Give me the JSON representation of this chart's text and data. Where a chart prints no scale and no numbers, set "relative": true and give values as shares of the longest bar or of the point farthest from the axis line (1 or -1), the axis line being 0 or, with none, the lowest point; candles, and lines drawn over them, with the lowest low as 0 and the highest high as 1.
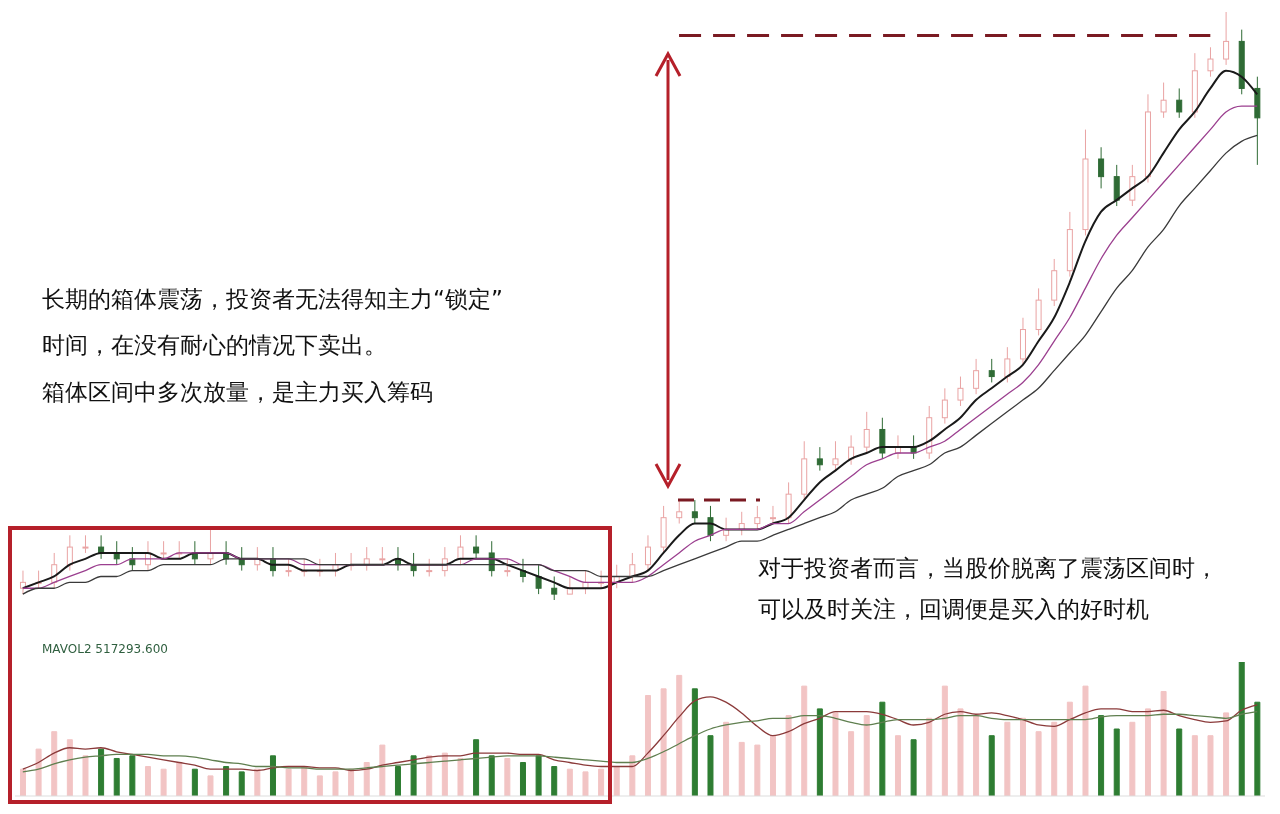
{
  "chart_data": [
    {
      "type": "candlestick",
      "relative": true,
      "ref_lines": [
        {
          "axis": "y",
          "value": 0.96,
          "color": "#7a1a22",
          "line_style": "dashed"
        }
      ],
      "categories": [
        null,
        null,
        null,
        null,
        null,
        null,
        null,
        null,
        null,
        null,
        null,
        null,
        null,
        null,
        null,
        null,
        null,
        null,
        null,
        null,
        null,
        null,
        null,
        null,
        null,
        null,
        null,
        null,
        null,
        null,
        null,
        null,
        null,
        null,
        null,
        null,
        null,
        null,
        null,
        null,
        null,
        null,
        null,
        null,
        null,
        null,
        null,
        null,
        null,
        null,
        null,
        null,
        null,
        null,
        null,
        null,
        null,
        null,
        null,
        null,
        null,
        null,
        null,
        null,
        null,
        null,
        null,
        null,
        null,
        null,
        null,
        null,
        null,
        null,
        null,
        null,
        null,
        null,
        null,
        null
      ],
      "ohlc": [
        [
          0.02,
          0.05,
          0.01,
          0.03
        ],
        [
          0.03,
          0.05,
          0.02,
          0.03
        ],
        [
          0.03,
          0.08,
          0.02,
          0.06
        ],
        [
          0.06,
          0.11,
          0.05,
          0.09
        ],
        [
          0.09,
          0.11,
          0.08,
          0.09
        ],
        [
          0.09,
          0.11,
          0.07,
          0.08
        ],
        [
          0.08,
          0.1,
          0.06,
          0.07
        ],
        [
          0.07,
          0.09,
          0.05,
          0.06
        ],
        [
          0.06,
          0.1,
          0.05,
          0.08
        ],
        [
          0.08,
          0.1,
          0.07,
          0.08
        ],
        [
          0.08,
          0.1,
          0.07,
          0.08
        ],
        [
          0.08,
          0.1,
          0.06,
          0.07
        ],
        [
          0.07,
          0.12,
          0.06,
          0.08
        ],
        [
          0.08,
          0.1,
          0.06,
          0.07
        ],
        [
          0.07,
          0.09,
          0.05,
          0.06
        ],
        [
          0.06,
          0.09,
          0.05,
          0.07
        ],
        [
          0.07,
          0.09,
          0.04,
          0.05
        ],
        [
          0.05,
          0.07,
          0.04,
          0.05
        ],
        [
          0.05,
          0.07,
          0.04,
          0.05
        ],
        [
          0.05,
          0.07,
          0.04,
          0.05
        ],
        [
          0.05,
          0.08,
          0.04,
          0.06
        ],
        [
          0.06,
          0.08,
          0.05,
          0.06
        ],
        [
          0.06,
          0.09,
          0.05,
          0.07
        ],
        [
          0.07,
          0.09,
          0.06,
          0.07
        ],
        [
          0.07,
          0.09,
          0.05,
          0.06
        ],
        [
          0.06,
          0.08,
          0.04,
          0.05
        ],
        [
          0.05,
          0.07,
          0.04,
          0.05
        ],
        [
          0.05,
          0.09,
          0.04,
          0.07
        ],
        [
          0.07,
          0.11,
          0.06,
          0.09
        ],
        [
          0.09,
          0.11,
          0.07,
          0.08
        ],
        [
          0.08,
          0.1,
          0.04,
          0.05
        ],
        [
          0.05,
          0.07,
          0.04,
          0.05
        ],
        [
          0.05,
          0.07,
          0.03,
          0.04
        ],
        [
          0.04,
          0.06,
          0.01,
          0.02
        ],
        [
          0.02,
          0.04,
          0.0,
          0.01
        ],
        [
          0.01,
          0.04,
          0.01,
          0.02
        ],
        [
          0.02,
          0.05,
          0.01,
          0.03
        ],
        [
          0.03,
          0.05,
          0.02,
          0.03
        ],
        [
          0.03,
          0.06,
          0.02,
          0.04
        ],
        [
          0.04,
          0.08,
          0.03,
          0.06
        ],
        [
          0.06,
          0.11,
          0.05,
          0.09
        ],
        [
          0.09,
          0.16,
          0.08,
          0.14
        ],
        [
          0.14,
          0.17,
          0.13,
          0.15
        ],
        [
          0.15,
          0.17,
          0.13,
          0.14
        ],
        [
          0.14,
          0.16,
          0.1,
          0.11
        ],
        [
          0.11,
          0.14,
          0.1,
          0.12
        ],
        [
          0.12,
          0.15,
          0.11,
          0.13
        ],
        [
          0.13,
          0.16,
          0.12,
          0.14
        ],
        [
          0.14,
          0.16,
          0.13,
          0.14
        ],
        [
          0.14,
          0.2,
          0.13,
          0.18
        ],
        [
          0.18,
          0.27,
          0.17,
          0.24
        ],
        [
          0.24,
          0.26,
          0.22,
          0.23
        ],
        [
          0.23,
          0.27,
          0.22,
          0.24
        ],
        [
          0.24,
          0.28,
          0.23,
          0.26
        ],
        [
          0.26,
          0.32,
          0.25,
          0.29
        ],
        [
          0.29,
          0.31,
          0.24,
          0.25
        ],
        [
          0.25,
          0.28,
          0.24,
          0.26
        ],
        [
          0.26,
          0.28,
          0.24,
          0.25
        ],
        [
          0.25,
          0.33,
          0.24,
          0.31
        ],
        [
          0.31,
          0.36,
          0.3,
          0.34
        ],
        [
          0.34,
          0.38,
          0.33,
          0.36
        ],
        [
          0.36,
          0.41,
          0.35,
          0.39
        ],
        [
          0.39,
          0.41,
          0.37,
          0.38
        ],
        [
          0.38,
          0.43,
          0.37,
          0.41
        ],
        [
          0.41,
          0.48,
          0.4,
          0.46
        ],
        [
          0.46,
          0.53,
          0.45,
          0.51
        ],
        [
          0.51,
          0.58,
          0.5,
          0.56
        ],
        [
          0.56,
          0.66,
          0.55,
          0.63
        ],
        [
          0.63,
          0.8,
          0.62,
          0.75
        ],
        [
          0.75,
          0.77,
          0.7,
          0.72
        ],
        [
          0.72,
          0.74,
          0.67,
          0.68
        ],
        [
          0.68,
          0.74,
          0.67,
          0.72
        ],
        [
          0.72,
          0.86,
          0.71,
          0.83
        ],
        [
          0.83,
          0.88,
          0.82,
          0.85
        ],
        [
          0.85,
          0.87,
          0.82,
          0.83
        ],
        [
          0.83,
          0.93,
          0.82,
          0.9
        ],
        [
          0.9,
          0.94,
          0.89,
          0.92
        ],
        [
          0.92,
          1.0,
          0.91,
          0.95
        ],
        [
          0.95,
          0.97,
          0.86,
          0.87
        ],
        [
          0.87,
          0.89,
          0.74,
          0.82
        ]
      ],
      "colors": [
        "#e9a3a3",
        "#e9a3a3",
        "#e9a3a3",
        "#e9a3a3",
        "#e9a3a3",
        "#2f6b35",
        "#2f6b35",
        "#2f6b35",
        "#e9a3a3",
        "#e9a3a3",
        "#e9a3a3",
        "#2f6b35",
        "#e9a3a3",
        "#2f6b35",
        "#2f6b35",
        "#e9a3a3",
        "#2f6b35",
        "#e9a3a3",
        "#e9a3a3",
        "#e9a3a3",
        "#e9a3a3",
        "#e9a3a3",
        "#e9a3a3",
        "#e9a3a3",
        "#2f6b35",
        "#2f6b35",
        "#e9a3a3",
        "#e9a3a3",
        "#e9a3a3",
        "#2f6b35",
        "#2f6b35",
        "#e9a3a3",
        "#2f6b35",
        "#2f6b35",
        "#2f6b35",
        "#e9a3a3",
        "#e9a3a3",
        "#e9a3a3",
        "#e9a3a3",
        "#e9a3a3",
        "#e9a3a3",
        "#e9a3a3",
        "#e9a3a3",
        "#2f6b35",
        "#2f6b35",
        "#e9a3a3",
        "#e9a3a3",
        "#e9a3a3",
        "#e9a3a3",
        "#e9a3a3",
        "#e9a3a3",
        "#2f6b35",
        "#e9a3a3",
        "#e9a3a3",
        "#e9a3a3",
        "#2f6b35",
        "#e9a3a3",
        "#2f6b35",
        "#e9a3a3",
        "#e9a3a3",
        "#e9a3a3",
        "#e9a3a3",
        "#2f6b35",
        "#e9a3a3",
        "#e9a3a3",
        "#e9a3a3",
        "#e9a3a3",
        "#e9a3a3",
        "#e9a3a3",
        "#2f6b35",
        "#2f6b35",
        "#e9a3a3",
        "#e9a3a3",
        "#e9a3a3",
        "#2f6b35",
        "#e9a3a3",
        "#e9a3a3",
        "#e9a3a3",
        "#2f6b35",
        "#2f6b35"
      ],
      "series": [
        {
          "type": "line",
          "color": "#1a1a1a",
          "values": [
            0.02,
            0.03,
            0.04,
            0.06,
            0.07,
            0.08,
            0.08,
            0.08,
            0.08,
            0.07,
            0.07,
            0.08,
            0.08,
            0.08,
            0.07,
            0.07,
            0.06,
            0.06,
            0.05,
            0.05,
            0.05,
            0.06,
            0.06,
            0.06,
            0.07,
            0.06,
            0.06,
            0.06,
            0.07,
            0.07,
            0.07,
            0.06,
            0.05,
            0.04,
            0.03,
            0.02,
            0.02,
            0.02,
            0.03,
            0.04,
            0.05,
            0.08,
            0.11,
            0.13,
            0.13,
            0.12,
            0.12,
            0.12,
            0.13,
            0.14,
            0.17,
            0.2,
            0.22,
            0.24,
            0.25,
            0.26,
            0.26,
            0.26,
            0.27,
            0.29,
            0.31,
            0.34,
            0.36,
            0.38,
            0.4,
            0.44,
            0.48,
            0.54,
            0.61,
            0.66,
            0.68,
            0.7,
            0.72,
            0.76,
            0.8,
            0.83,
            0.87,
            0.9,
            0.89,
            0.86
          ]
        },
        {
          "type": "line",
          "color": "#9b3f8f",
          "values": [
            0.02,
            0.02,
            0.03,
            0.04,
            0.05,
            0.06,
            0.06,
            0.07,
            0.07,
            0.07,
            0.08,
            0.08,
            0.08,
            0.08,
            0.07,
            0.07,
            0.07,
            0.07,
            0.06,
            0.06,
            0.06,
            0.06,
            0.06,
            0.06,
            0.06,
            0.06,
            0.06,
            0.06,
            0.06,
            0.07,
            0.07,
            0.07,
            0.06,
            0.06,
            0.05,
            0.04,
            0.03,
            0.03,
            0.03,
            0.03,
            0.04,
            0.06,
            0.08,
            0.1,
            0.11,
            0.12,
            0.12,
            0.12,
            0.13,
            0.13,
            0.15,
            0.17,
            0.19,
            0.21,
            0.23,
            0.24,
            0.25,
            0.25,
            0.26,
            0.27,
            0.29,
            0.31,
            0.33,
            0.35,
            0.37,
            0.4,
            0.44,
            0.48,
            0.53,
            0.58,
            0.62,
            0.65,
            0.68,
            0.71,
            0.74,
            0.77,
            0.8,
            0.83,
            0.84,
            0.84
          ]
        },
        {
          "type": "line",
          "color": "#3a3a3a",
          "values": [
            0.01,
            0.02,
            0.02,
            0.03,
            0.03,
            0.04,
            0.04,
            0.05,
            0.05,
            0.06,
            0.06,
            0.06,
            0.06,
            0.07,
            0.07,
            0.07,
            0.07,
            0.07,
            0.07,
            0.06,
            0.06,
            0.06,
            0.06,
            0.06,
            0.06,
            0.06,
            0.06,
            0.06,
            0.06,
            0.06,
            0.06,
            0.06,
            0.06,
            0.06,
            0.05,
            0.05,
            0.05,
            0.04,
            0.04,
            0.04,
            0.04,
            0.05,
            0.06,
            0.07,
            0.08,
            0.09,
            0.1,
            0.1,
            0.11,
            0.12,
            0.13,
            0.14,
            0.15,
            0.17,
            0.18,
            0.19,
            0.21,
            0.22,
            0.23,
            0.25,
            0.26,
            0.28,
            0.3,
            0.32,
            0.34,
            0.36,
            0.39,
            0.42,
            0.45,
            0.49,
            0.53,
            0.56,
            0.6,
            0.63,
            0.67,
            0.7,
            0.73,
            0.76,
            0.78,
            0.79
          ]
        }
      ],
      "annotations": [
        "长期的箱体震荡，投资者无法得知主力“锁定”",
        "时间，在没有耐心的情况下卖出。",
        "箱体区间中多次放量，是主力买入筹码",
        "对于投资者而言，当股价脱离了震荡区间时，",
        "可以及时关注，回调便是买入的好时机"
      ]
    },
    {
      "type": "bar",
      "relative": true,
      "categories": [
        null,
        null,
        null,
        null,
        null,
        null,
        null,
        null,
        null,
        null,
        null,
        null,
        null,
        null,
        null,
        null,
        null,
        null,
        null,
        null,
        null,
        null,
        null,
        null,
        null,
        null,
        null,
        null,
        null,
        null,
        null,
        null,
        null,
        null,
        null,
        null,
        null,
        null,
        null,
        null,
        null,
        null,
        null,
        null,
        null,
        null,
        null,
        null,
        null,
        null,
        null,
        null,
        null,
        null,
        null,
        null,
        null,
        null,
        null,
        null,
        null,
        null,
        null,
        null,
        null,
        null,
        null,
        null,
        null,
        null,
        null,
        null,
        null,
        null,
        null,
        null,
        null,
        null,
        null,
        null
      ],
      "series": [
        {
          "type": "bar",
          "colors": [
            "#f2c4c4",
            "#f2c4c4",
            "#f2c4c4",
            "#f2c4c4",
            "#f2c4c4",
            "#2e7d32",
            "#2e7d32",
            "#2e7d32",
            "#f2c4c4",
            "#f2c4c4",
            "#f2c4c4",
            "#2e7d32",
            "#f2c4c4",
            "#2e7d32",
            "#2e7d32",
            "#f2c4c4",
            "#2e7d32",
            "#f2c4c4",
            "#f2c4c4",
            "#f2c4c4",
            "#f2c4c4",
            "#f2c4c4",
            "#f2c4c4",
            "#f2c4c4",
            "#2e7d32",
            "#2e7d32",
            "#f2c4c4",
            "#f2c4c4",
            "#f2c4c4",
            "#2e7d32",
            "#2e7d32",
            "#f2c4c4",
            "#2e7d32",
            "#2e7d32",
            "#2e7d32",
            "#f2c4c4",
            "#f2c4c4",
            "#f2c4c4",
            "#f2c4c4",
            "#f2c4c4",
            "#f2c4c4",
            "#f2c4c4",
            "#f2c4c4",
            "#2e7d32",
            "#2e7d32",
            "#f2c4c4",
            "#f2c4c4",
            "#f2c4c4",
            "#f2c4c4",
            "#f2c4c4",
            "#f2c4c4",
            "#2e7d32",
            "#f2c4c4",
            "#f2c4c4",
            "#f2c4c4",
            "#2e7d32",
            "#f2c4c4",
            "#2e7d32",
            "#f2c4c4",
            "#f2c4c4",
            "#f2c4c4",
            "#f2c4c4",
            "#2e7d32",
            "#f2c4c4",
            "#f2c4c4",
            "#f2c4c4",
            "#f2c4c4",
            "#f2c4c4",
            "#f2c4c4",
            "#2e7d32",
            "#2e7d32",
            "#f2c4c4",
            "#f2c4c4",
            "#f2c4c4",
            "#2e7d32",
            "#f2c4c4",
            "#f2c4c4",
            "#f2c4c4",
            "#2e7d32",
            "#2e7d32"
          ],
          "values": [
            0.2,
            0.35,
            0.48,
            0.42,
            0.3,
            0.35,
            0.28,
            0.3,
            0.22,
            0.2,
            0.25,
            0.2,
            0.15,
            0.22,
            0.18,
            0.2,
            0.3,
            0.2,
            0.22,
            0.15,
            0.18,
            0.2,
            0.25,
            0.38,
            0.22,
            0.3,
            0.3,
            0.32,
            0.28,
            0.42,
            0.3,
            0.28,
            0.25,
            0.3,
            0.22,
            0.2,
            0.18,
            0.2,
            0.22,
            0.3,
            0.75,
            0.8,
            0.9,
            0.8,
            0.45,
            0.55,
            0.4,
            0.38,
            0.45,
            0.6,
            0.82,
            0.65,
            0.62,
            0.48,
            0.6,
            0.7,
            0.45,
            0.42,
            0.58,
            0.82,
            0.65,
            0.6,
            0.45,
            0.55,
            0.58,
            0.48,
            0.55,
            0.7,
            0.82,
            0.6,
            0.5,
            0.55,
            0.65,
            0.78,
            0.5,
            0.45,
            0.45,
            0.62,
            1.0,
            0.7
          ]
        },
        {
          "type": "line",
          "color": "#8b3a3a",
          "values": [
            0.2,
            0.25,
            0.32,
            0.36,
            0.35,
            0.36,
            0.33,
            0.31,
            0.29,
            0.27,
            0.25,
            0.23,
            0.2,
            0.2,
            0.2,
            0.19,
            0.21,
            0.22,
            0.22,
            0.21,
            0.21,
            0.19,
            0.2,
            0.23,
            0.25,
            0.27,
            0.29,
            0.3,
            0.3,
            0.32,
            0.32,
            0.32,
            0.31,
            0.31,
            0.27,
            0.25,
            0.23,
            0.22,
            0.22,
            0.22,
            0.32,
            0.45,
            0.59,
            0.71,
            0.74,
            0.7,
            0.62,
            0.52,
            0.45,
            0.48,
            0.54,
            0.58,
            0.63,
            0.63,
            0.63,
            0.61,
            0.57,
            0.53,
            0.55,
            0.61,
            0.63,
            0.61,
            0.62,
            0.6,
            0.57,
            0.53,
            0.52,
            0.57,
            0.62,
            0.65,
            0.65,
            0.63,
            0.63,
            0.64,
            0.6,
            0.57,
            0.55,
            0.56,
            0.64,
            0.68
          ]
        },
        {
          "type": "line",
          "color": "#5f7f4f",
          "values": [
            0.18,
            0.2,
            0.24,
            0.27,
            0.29,
            0.3,
            0.31,
            0.31,
            0.31,
            0.3,
            0.3,
            0.29,
            0.27,
            0.25,
            0.24,
            0.22,
            0.22,
            0.21,
            0.21,
            0.2,
            0.2,
            0.2,
            0.21,
            0.22,
            0.23,
            0.24,
            0.25,
            0.26,
            0.27,
            0.28,
            0.29,
            0.3,
            0.3,
            0.3,
            0.29,
            0.28,
            0.27,
            0.26,
            0.25,
            0.25,
            0.28,
            0.33,
            0.39,
            0.45,
            0.5,
            0.53,
            0.55,
            0.56,
            0.58,
            0.58,
            0.6,
            0.6,
            0.58,
            0.55,
            0.53,
            0.55,
            0.57,
            0.57,
            0.57,
            0.58,
            0.6,
            0.6,
            0.58,
            0.57,
            0.57,
            0.57,
            0.57,
            0.57,
            0.57,
            0.59,
            0.6,
            0.6,
            0.6,
            0.61,
            0.61,
            0.6,
            0.59,
            0.58,
            0.61,
            0.63
          ]
        }
      ],
      "annotations": [
        "MAVOL2 517293.600"
      ]
    }
  ]
}
